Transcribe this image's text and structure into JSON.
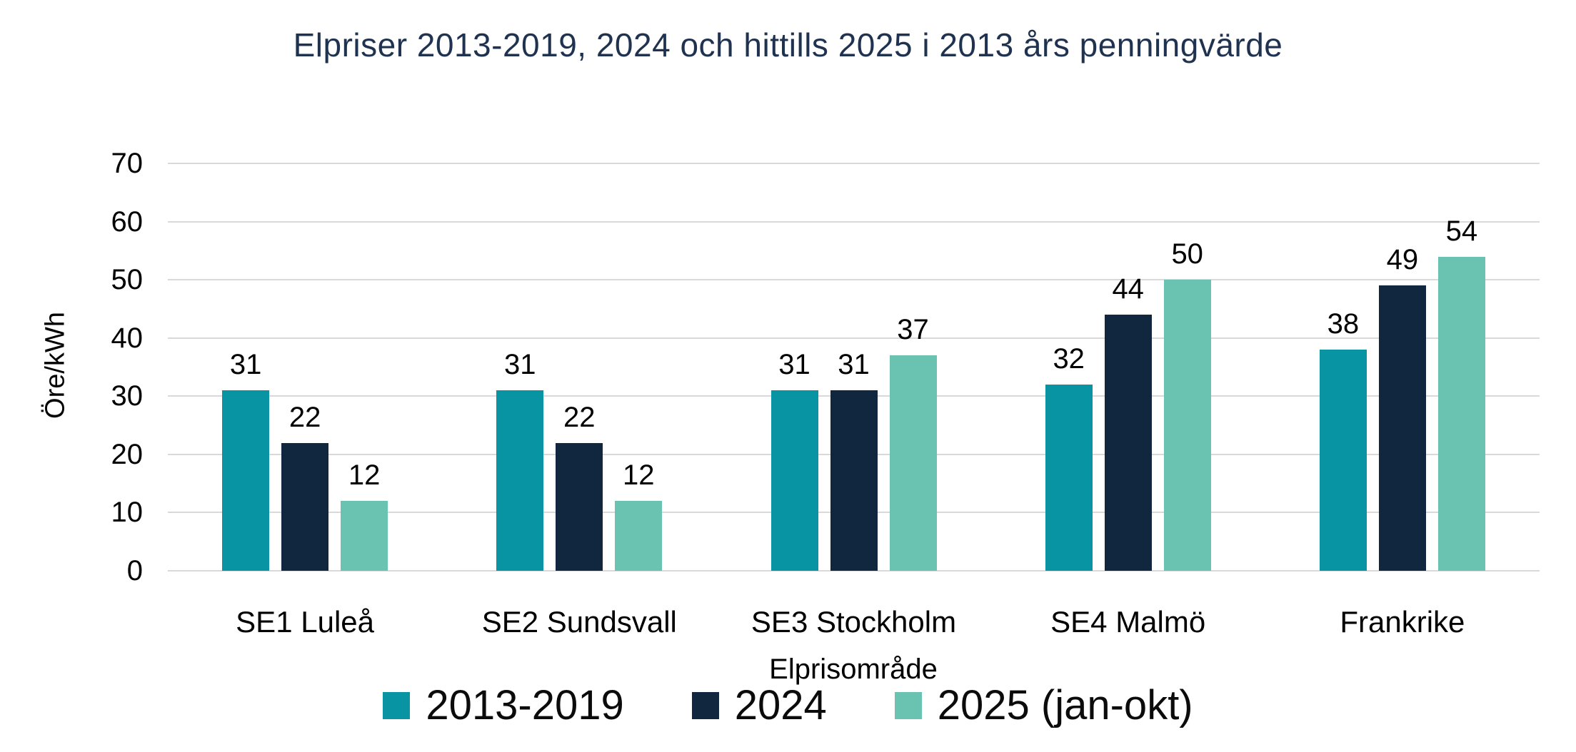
{
  "title": "Elpriser 2013-2019, 2024 och hittills 2025 i 2013 års penningvärde",
  "chart_data": {
    "type": "bar",
    "title": "Elpriser 2013-2019, 2024 och hittills 2025 i 2013 års penningvärde",
    "categories": [
      "SE1 Luleå",
      "SE2 Sundsvall",
      "SE3 Stockholm",
      "SE4 Malmö",
      "Frankrike"
    ],
    "series": [
      {
        "name": "2013-2019",
        "color": "#0994A3",
        "values": [
          31,
          31,
          31,
          32,
          38
        ]
      },
      {
        "name": "2024",
        "color": "#112740",
        "values": [
          22,
          22,
          31,
          44,
          49
        ]
      },
      {
        "name": "2025 (jan-okt)",
        "color": "#6AC3B1",
        "values": [
          12,
          12,
          37,
          50,
          54
        ]
      }
    ],
    "xlabel": "Elprisområde",
    "ylabel": "Öre/kWh",
    "ylim": [
      0,
      70
    ],
    "ytick_step": 10,
    "yticks": [
      0,
      10,
      20,
      30,
      40,
      50,
      60,
      70
    ],
    "grid": "horizontal",
    "legend_position": "bottom",
    "value_labels": true
  },
  "colors": {
    "title": "#1F3250",
    "gridline": "#D9D9D9",
    "text": "#000000",
    "background": "#FFFFFF"
  }
}
